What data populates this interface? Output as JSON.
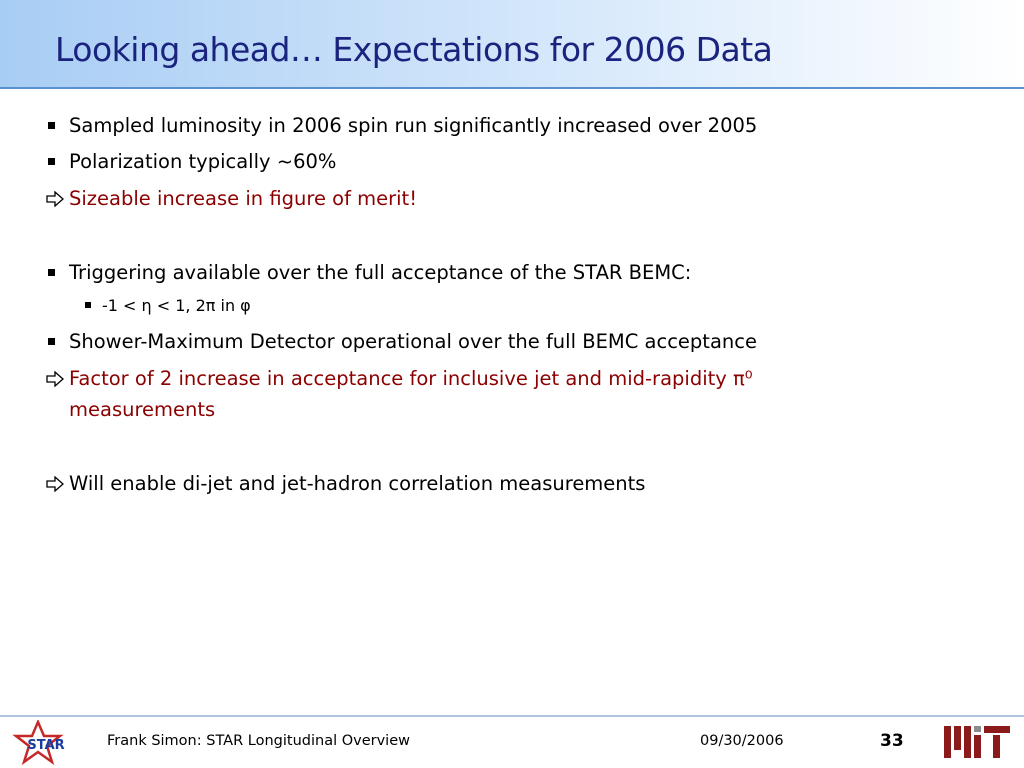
{
  "header": {
    "title": "Looking ahead… Expectations for 2006 Data"
  },
  "bullets": [
    {
      "text": "Sampled luminosity in 2006 spin run significantly increased over 2005"
    },
    {
      "text": "Polarization typically ~60%"
    },
    {
      "text": "Sizeable increase in figure of merit!"
    },
    {
      "text": "Triggering available over the full acceptance of the STAR BEMC:"
    },
    {
      "text": "-1 < η < 1, 2π in φ"
    },
    {
      "text": "Shower-Maximum Detector operational over the full BEMC acceptance"
    },
    {
      "text": "Factor of 2 increase in acceptance for inclusive jet and mid-rapidity π⁰ measurements"
    },
    {
      "text": "Will enable di-jet and jet-hadron correlation measurements"
    }
  ],
  "footer": {
    "author": "Frank Simon: STAR Longitudinal Overview",
    "date": "09/30/2006",
    "page": 33,
    "logo": "STAR"
  }
}
